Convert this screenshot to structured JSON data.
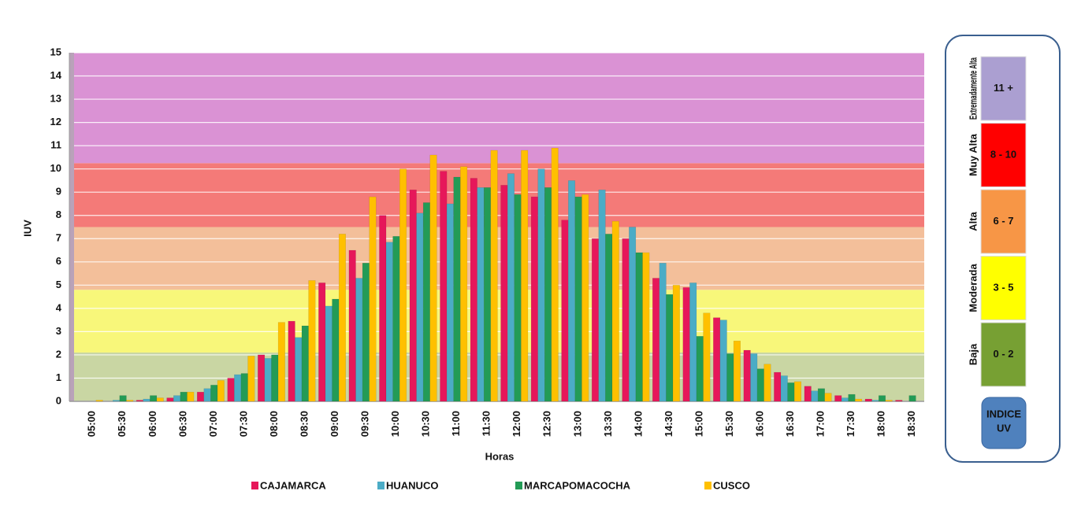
{
  "chart_data": {
    "type": "bar",
    "x_label": "Horas",
    "y_label": "IUV",
    "categories": [
      "05:00",
      "05:30",
      "06:00",
      "06:30",
      "07:00",
      "07:30",
      "08:00",
      "08:30",
      "09:00",
      "09:30",
      "10:00",
      "10:30",
      "11:00",
      "11:30",
      "12:00",
      "12:30",
      "13:00",
      "13:30",
      "14:00",
      "14:30",
      "15:00",
      "15:30",
      "16:00",
      "16:30",
      "17:00",
      "17:30",
      "18:00",
      "18:30"
    ],
    "series": [
      {
        "name": "CAJAMARCA",
        "color": "#e6175a",
        "values": [
          0,
          0,
          0.05,
          0.15,
          0.4,
          1.0,
          2.0,
          3.45,
          5.1,
          6.5,
          8.0,
          9.1,
          9.9,
          9.6,
          9.3,
          8.8,
          7.8,
          7.0,
          7.0,
          5.3,
          4.9,
          3.6,
          2.2,
          1.25,
          0.65,
          0.25,
          0.1,
          0.05
        ]
      },
      {
        "name": "HUANUCO",
        "color": "#4bacc6",
        "values": [
          0,
          0.05,
          0.1,
          0.25,
          0.55,
          1.15,
          1.85,
          2.75,
          4.1,
          5.3,
          6.85,
          8.1,
          8.5,
          9.2,
          9.8,
          10.0,
          9.5,
          9.1,
          7.5,
          5.95,
          5.1,
          3.5,
          2.05,
          1.1,
          0.45,
          0.15,
          0.05,
          0
        ]
      },
      {
        "name": "MARCAPOMACOCHA",
        "color": "#239b56",
        "values": [
          0,
          0.25,
          0.25,
          0.4,
          0.7,
          1.2,
          2.0,
          3.25,
          4.4,
          5.95,
          7.1,
          8.55,
          9.65,
          9.2,
          8.9,
          9.2,
          8.8,
          7.2,
          6.4,
          4.6,
          2.8,
          2.05,
          1.4,
          0.8,
          0.55,
          0.3,
          0.25,
          0.25
        ]
      },
      {
        "name": "CUSCO",
        "color": "#ffc000",
        "values": [
          0.05,
          0.05,
          0.15,
          0.4,
          0.9,
          1.95,
          3.4,
          5.2,
          7.2,
          8.8,
          10.0,
          10.6,
          10.1,
          10.8,
          10.8,
          10.9,
          8.9,
          7.75,
          6.4,
          5.0,
          3.8,
          2.6,
          1.6,
          0.85,
          0.35,
          0.1,
          0.05,
          0
        ]
      }
    ],
    "bands": [
      {
        "from": 0,
        "to": 2.1,
        "color": "#c9d6a3"
      },
      {
        "from": 2.1,
        "to": 4.8,
        "color": "#f8f77a"
      },
      {
        "from": 4.8,
        "to": 7.5,
        "color": "#f3bf9a"
      },
      {
        "from": 7.5,
        "to": 10.25,
        "color": "#f47a78"
      },
      {
        "from": 10.25,
        "to": 15,
        "color": "#da92d4"
      }
    ],
    "ylim": [
      0,
      15
    ],
    "yticks": [
      0,
      1,
      2,
      3,
      4,
      5,
      6,
      7,
      8,
      9,
      10,
      11,
      12,
      13,
      14,
      15
    ],
    "grid": true
  },
  "uv_scale": {
    "levels": [
      {
        "name": "Extremadamente Alta",
        "range": "11 +",
        "color": "#ab9fd1",
        "text_color": "#ffffff"
      },
      {
        "name": "Muy Alta",
        "range": "8 - 10",
        "color": "#ff0000",
        "text_color": "#ffffff"
      },
      {
        "name": "Alta",
        "range": "6 - 7",
        "color": "#f79646",
        "text_color": "#ffffff"
      },
      {
        "name": "Moderada",
        "range": "3 - 5",
        "color": "#ffff00",
        "text_color": "#333333"
      },
      {
        "name": "Baja",
        "range": "0 - 2",
        "color": "#77a033",
        "text_color": "#ffffff"
      }
    ],
    "button_lines": [
      "INDICE",
      "UV"
    ]
  }
}
